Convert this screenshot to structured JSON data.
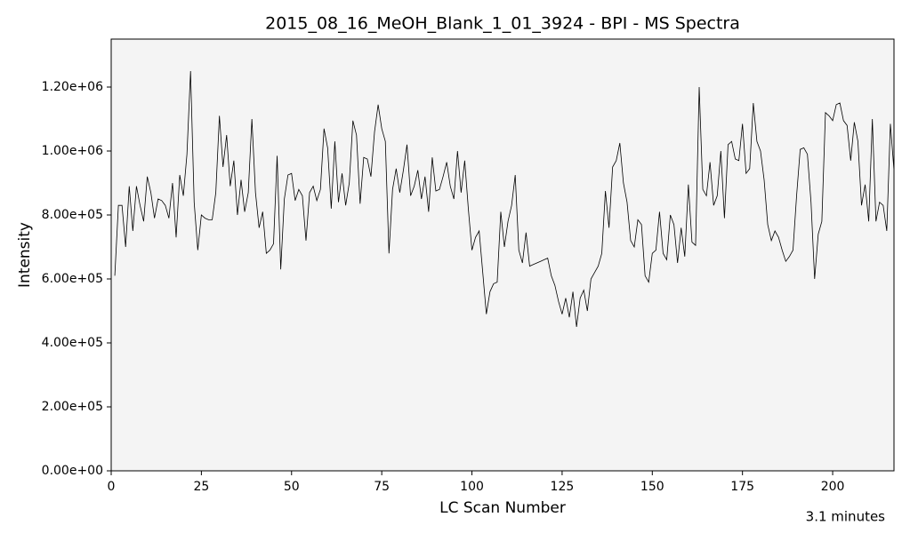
{
  "chart_data": {
    "type": "line",
    "title": "2015_08_16_MeOH_Blank_1_01_3924 - BPI - MS Spectra",
    "x_label": "LC Scan Number",
    "y_label": "Intensity",
    "annotation": "3.1 minutes",
    "color": "#000000",
    "background": "#f4f4f4",
    "xlim": [
      0,
      217
    ],
    "ylim": [
      0,
      1350000
    ],
    "xticks": [
      0,
      25,
      50,
      75,
      100,
      125,
      150,
      175,
      200
    ],
    "yticks": [
      {
        "value": 0,
        "label": "0.00e+00"
      },
      {
        "value": 200000,
        "label": "2.00e+05"
      },
      {
        "value": 400000,
        "label": "4.00e+05"
      },
      {
        "value": 600000,
        "label": "6.00e+05"
      },
      {
        "value": 800000,
        "label": "8.00e+05"
      },
      {
        "value": 1000000,
        "label": "1.00e+06"
      },
      {
        "value": 1200000,
        "label": "1.20e+06"
      }
    ],
    "x": [
      1,
      2,
      3,
      4,
      5,
      6,
      7,
      8,
      9,
      10,
      11,
      12,
      13,
      14,
      15,
      16,
      17,
      18,
      19,
      20,
      21,
      22,
      23,
      24,
      25,
      26,
      27,
      28,
      29,
      30,
      31,
      32,
      33,
      34,
      35,
      36,
      37,
      38,
      39,
      40,
      41,
      42,
      43,
      44,
      45,
      46,
      47,
      48,
      49,
      50,
      51,
      52,
      53,
      54,
      55,
      56,
      57,
      58,
      59,
      60,
      61,
      62,
      63,
      64,
      65,
      66,
      67,
      68,
      69,
      70,
      71,
      72,
      73,
      74,
      75,
      76,
      77,
      78,
      79,
      80,
      81,
      82,
      83,
      84,
      85,
      86,
      87,
      88,
      89,
      90,
      91,
      92,
      93,
      94,
      95,
      96,
      97,
      98,
      99,
      100,
      101,
      102,
      103,
      104,
      105,
      106,
      107,
      108,
      109,
      110,
      111,
      112,
      113,
      114,
      115,
      116,
      117,
      118,
      119,
      120,
      121,
      122,
      123,
      124,
      125,
      126,
      127,
      128,
      129,
      130,
      131,
      132,
      133,
      134,
      135,
      136,
      137,
      138,
      139,
      140,
      141,
      142,
      143,
      144,
      145,
      146,
      147,
      148,
      149,
      150,
      151,
      152,
      153,
      154,
      155,
      156,
      157,
      158,
      159,
      160,
      161,
      162,
      163,
      164,
      165,
      166,
      167,
      168,
      169,
      170,
      171,
      172,
      173,
      174,
      175,
      176,
      177,
      178,
      179,
      180,
      181,
      182,
      183,
      184,
      185,
      186,
      187,
      188,
      189,
      190,
      191,
      192,
      193,
      194,
      195,
      196,
      197,
      198,
      199,
      200,
      201,
      202,
      203,
      204,
      205,
      206,
      207,
      208,
      209,
      210,
      211,
      212,
      213,
      214,
      215,
      216,
      217
    ],
    "values": [
      610000.0,
      830000.0,
      830000.0,
      700000.0,
      890000.0,
      750000.0,
      890000.0,
      830000.0,
      780000.0,
      920000.0,
      870000.0,
      790000.0,
      850000.0,
      845000.0,
      830000.0,
      790000.0,
      900000.0,
      730000.0,
      925000.0,
      860000.0,
      990000.0,
      1250000.0,
      840000.0,
      690000.0,
      800000.0,
      790000.0,
      785000.0,
      785000.0,
      870000.0,
      1110000.0,
      950000.0,
      1050000.0,
      890000.0,
      970000.0,
      800000.0,
      910000.0,
      810000.0,
      870000.0,
      1100000.0,
      870000.0,
      760000.0,
      810000.0,
      680000.0,
      690000.0,
      710000.0,
      985000.0,
      630000.0,
      850000.0,
      925000.0,
      930000.0,
      845000.0,
      880000.0,
      860000.0,
      720000.0,
      870000.0,
      890000.0,
      845000.0,
      880000.0,
      1070000.0,
      1010000.0,
      820000.0,
      1030000.0,
      840000.0,
      930000.0,
      830000.0,
      900000.0,
      1095000.0,
      1050000.0,
      835000.0,
      980000.0,
      975000.0,
      920000.0,
      1060000.0,
      1145000.0,
      1070000.0,
      1030000.0,
      680000.0,
      880000.0,
      945000.0,
      870000.0,
      940000.0,
      1020000.0,
      860000.0,
      890000.0,
      940000.0,
      850000.0,
      920000.0,
      810000.0,
      980000.0,
      875000.0,
      880000.0,
      920000.0,
      965000.0,
      890000.0,
      850000.0,
      1000000.0,
      870000.0,
      970000.0,
      820000.0,
      690000.0,
      730000.0,
      750000.0,
      620000.0,
      490000.0,
      560000.0,
      585000.0,
      590000.0,
      810000.0,
      700000.0,
      780000.0,
      830000.0,
      925000.0,
      690000.0,
      650000.0,
      745000.0,
      640000.0,
      645000.0,
      650000.0,
      655000.0,
      660000.0,
      665000.0,
      610000.0,
      580000.0,
      530000.0,
      490000.0,
      540000.0,
      480000.0,
      560000.0,
      450000.0,
      540000.0,
      565000.0,
      500000.0,
      600000.0,
      620000.0,
      640000.0,
      680000.0,
      875000.0,
      760000.0,
      950000.0,
      970000.0,
      1025000.0,
      900000.0,
      840000.0,
      720000.0,
      700000.0,
      785000.0,
      770000.0,
      610000.0,
      590000.0,
      680000.0,
      690000.0,
      810000.0,
      680000.0,
      660000.0,
      800000.0,
      770000.0,
      650000.0,
      760000.0,
      670000.0,
      895000.0,
      715000.0,
      705000.0,
      1200000.0,
      880000.0,
      860000.0,
      965000.0,
      830000.0,
      860000.0,
      1000000.0,
      790000.0,
      1020000.0,
      1030000.0,
      975000.0,
      970000.0,
      1085000.0,
      930000.0,
      945000.0,
      1150000.0,
      1030000.0,
      1000000.0,
      910000.0,
      770000.0,
      720000.0,
      750000.0,
      730000.0,
      690000.0,
      655000.0,
      670000.0,
      690000.0,
      860000.0,
      1005000.0,
      1010000.0,
      990000.0,
      840000.0,
      600000.0,
      740000.0,
      780000.0,
      1120000.0,
      1110000.0,
      1095000.0,
      1145000.0,
      1150000.0,
      1095000.0,
      1080000.0,
      970000.0,
      1090000.0,
      1030000.0,
      830000.0,
      895000.0,
      780000.0,
      1100000.0,
      780000.0,
      840000.0,
      830000.0,
      750000.0,
      1085000.0,
      940000.0
    ]
  }
}
